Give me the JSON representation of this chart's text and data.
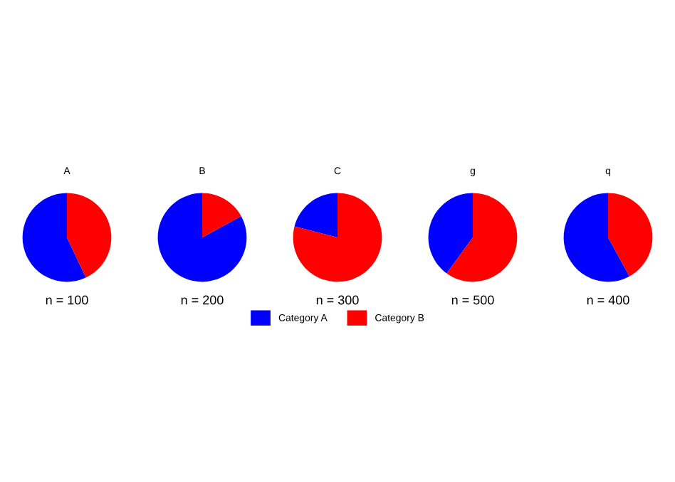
{
  "chart_data": [
    {
      "type": "pie",
      "title": "A",
      "annotations": [
        "n = 100"
      ],
      "categories": [
        "Category A",
        "Category B"
      ],
      "values": [
        57,
        43
      ],
      "colors": [
        "#0000ff",
        "#ff0000"
      ],
      "legend": "bottom"
    },
    {
      "type": "pie",
      "title": "B",
      "annotations": [
        "n = 200"
      ],
      "categories": [
        null,
        null
      ],
      "values": [
        83,
        17
      ],
      "colors": [
        "#0000ff",
        "#ff0000"
      ]
    },
    {
      "type": "pie",
      "title": "C",
      "annotations": [
        "n = 300"
      ],
      "categories": [
        null,
        null
      ],
      "values": [
        21,
        79
      ],
      "colors": [
        "#0000ff",
        "#ff0000"
      ]
    },
    {
      "type": "pie",
      "title": "g",
      "annotations": [
        "n = 500"
      ],
      "categories": [
        null,
        null
      ],
      "values": [
        40,
        60
      ],
      "colors": [
        "#0000ff",
        "#ff0000"
      ]
    },
    {
      "type": "pie",
      "title": "q",
      "annotations": [
        "n = 400"
      ],
      "categories": [
        null,
        null
      ],
      "values": [
        58,
        42
      ],
      "colors": [
        "#0000ff",
        "#ff0000"
      ]
    }
  ]
}
